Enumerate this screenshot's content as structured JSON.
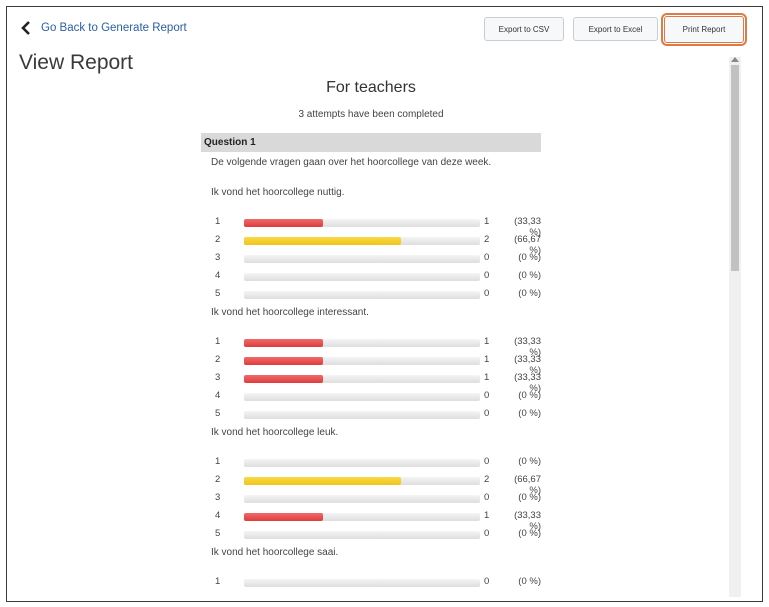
{
  "header": {
    "back_label": "Go Back to Generate Report",
    "export_csv": "Export to CSV",
    "export_excel": "Export to Excel",
    "print_report": "Print Report",
    "page_title": "View Report"
  },
  "colors": {
    "red_bar": "#e03b3b",
    "yellow_bar": "#f2c417",
    "highlight": "#e07a44"
  },
  "report": {
    "title": "For teachers",
    "subtitle": "3 attempts have been completed",
    "question_header": "Question 1",
    "intro": "De volgende vragen gaan over het hoorcollege van deze week.",
    "sub_questions": [
      {
        "text": "Ik vond het hoorcollege nuttig.",
        "rows": [
          {
            "option": "1",
            "count": "1",
            "percent": "(33,33 %)",
            "fraction": 0.3333,
            "color": "red"
          },
          {
            "option": "2",
            "count": "2",
            "percent": "(66,67 %)",
            "fraction": 0.6667,
            "color": "yellow"
          },
          {
            "option": "3",
            "count": "0",
            "percent": "(0 %)",
            "fraction": 0,
            "color": "red"
          },
          {
            "option": "4",
            "count": "0",
            "percent": "(0 %)",
            "fraction": 0,
            "color": "red"
          },
          {
            "option": "5",
            "count": "0",
            "percent": "(0 %)",
            "fraction": 0,
            "color": "red"
          }
        ]
      },
      {
        "text": "Ik vond het hoorcollege interessant.",
        "rows": [
          {
            "option": "1",
            "count": "1",
            "percent": "(33,33 %)",
            "fraction": 0.3333,
            "color": "red"
          },
          {
            "option": "2",
            "count": "1",
            "percent": "(33,33 %)",
            "fraction": 0.3333,
            "color": "red"
          },
          {
            "option": "3",
            "count": "1",
            "percent": "(33,33 %)",
            "fraction": 0.3333,
            "color": "red"
          },
          {
            "option": "4",
            "count": "0",
            "percent": "(0 %)",
            "fraction": 0,
            "color": "red"
          },
          {
            "option": "5",
            "count": "0",
            "percent": "(0 %)",
            "fraction": 0,
            "color": "red"
          }
        ]
      },
      {
        "text": "Ik vond het hoorcollege leuk.",
        "rows": [
          {
            "option": "1",
            "count": "0",
            "percent": "(0 %)",
            "fraction": 0,
            "color": "red"
          },
          {
            "option": "2",
            "count": "2",
            "percent": "(66,67 %)",
            "fraction": 0.6667,
            "color": "yellow"
          },
          {
            "option": "3",
            "count": "0",
            "percent": "(0 %)",
            "fraction": 0,
            "color": "red"
          },
          {
            "option": "4",
            "count": "1",
            "percent": "(33,33 %)",
            "fraction": 0.3333,
            "color": "red"
          },
          {
            "option": "5",
            "count": "0",
            "percent": "(0 %)",
            "fraction": 0,
            "color": "red"
          }
        ]
      },
      {
        "text": "Ik vond het hoorcollege saai.",
        "rows": [
          {
            "option": "1",
            "count": "0",
            "percent": "(0 %)",
            "fraction": 0,
            "color": "red"
          }
        ]
      }
    ]
  }
}
